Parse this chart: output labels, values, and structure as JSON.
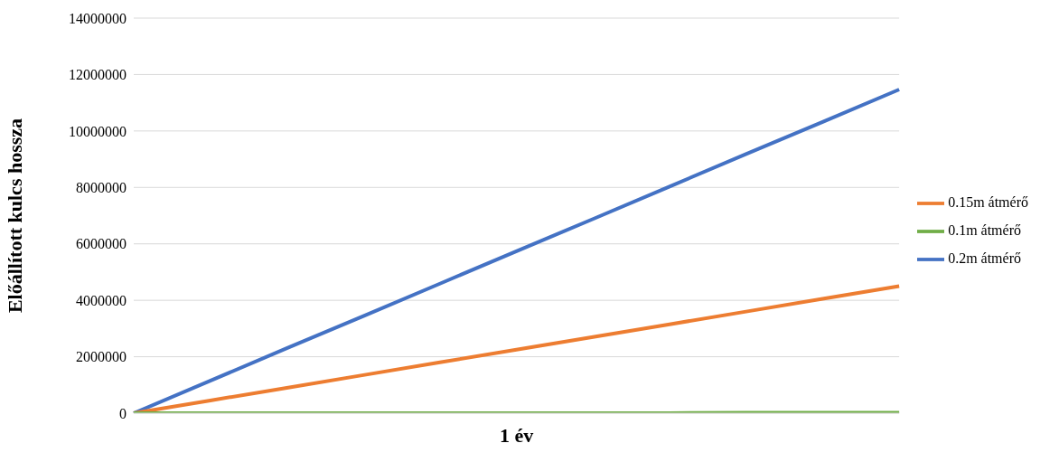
{
  "chart_data": {
    "type": "line",
    "xlabel": "1 év",
    "ylabel": "Előállított kulcs hossza",
    "categories": [
      null,
      null,
      null,
      null,
      null,
      null,
      null,
      null,
      null,
      null,
      null
    ],
    "series": [
      {
        "name": "0.2m átmérő",
        "color": "#4472c4",
        "values": [
          0,
          1150000,
          2300000,
          3440000,
          4590000,
          5740000,
          6880000,
          8030000,
          9180000,
          10320000,
          11470000
        ]
      },
      {
        "name": "0.15m átmérő",
        "color": "#ed7d31",
        "values": [
          0,
          450000,
          900000,
          1350000,
          1800000,
          2250000,
          2700000,
          3150000,
          3600000,
          4050000,
          4500000
        ]
      },
      {
        "name": "0.1m átmérő",
        "color": "#70ad47",
        "values": [
          0,
          0,
          0,
          0,
          0,
          0,
          0,
          0,
          20000,
          20000,
          20000
        ]
      }
    ],
    "ylim": [
      0,
      14000000
    ],
    "yticks": [
      0,
      2000000,
      4000000,
      6000000,
      8000000,
      10000000,
      12000000,
      14000000
    ],
    "grid": "y",
    "legend": "right",
    "marker": "none",
    "line_style": "solid"
  }
}
